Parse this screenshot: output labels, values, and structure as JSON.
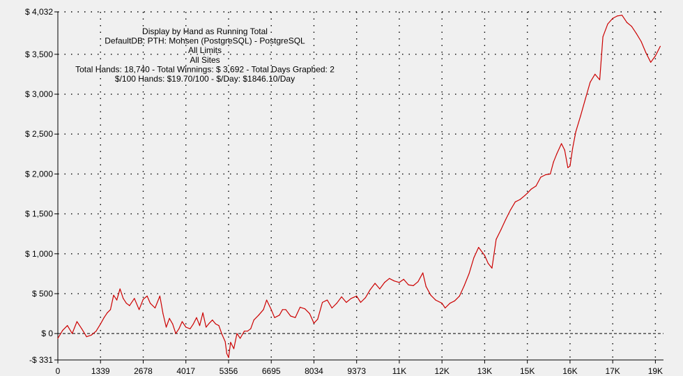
{
  "chart_data": {
    "type": "line",
    "title_lines": [
      "Display by Hand as Running Total",
      "DefaultDB: PTH: Mohsen (PostgreSQL) - PostgreSQL",
      "All Limits",
      "All Sites",
      "Total Hands: 18,740 - Total Winnings: $ 3,692 - Total Days Graphed: 2",
      "$/100 Hands: $19.70/100 - $/Day: $1846.10/Day"
    ],
    "xlim": [
      0,
      19000
    ],
    "ylim": [
      -331,
      4032
    ],
    "x_ticks": [
      {
        "value": 0,
        "label": "0"
      },
      {
        "value": 1339,
        "label": "1339"
      },
      {
        "value": 2678,
        "label": "2678"
      },
      {
        "value": 4017,
        "label": "4017"
      },
      {
        "value": 5356,
        "label": "5356"
      },
      {
        "value": 6695,
        "label": "6695"
      },
      {
        "value": 8034,
        "label": "8034"
      },
      {
        "value": 9373,
        "label": "9373"
      },
      {
        "value": 10712,
        "label": "11K"
      },
      {
        "value": 12051,
        "label": "12K"
      },
      {
        "value": 13390,
        "label": "13K"
      },
      {
        "value": 14729,
        "label": "15K"
      },
      {
        "value": 16068,
        "label": "16K"
      },
      {
        "value": 17407,
        "label": "17K"
      },
      {
        "value": 18746,
        "label": "19K"
      }
    ],
    "y_ticks": [
      {
        "value": 4032,
        "label": "$ 4,032"
      },
      {
        "value": 3500,
        "label": "$ 3,500"
      },
      {
        "value": 3000,
        "label": "$ 3,000"
      },
      {
        "value": 2500,
        "label": "$ 2,500"
      },
      {
        "value": 2000,
        "label": "$ 2,000"
      },
      {
        "value": 1500,
        "label": "$ 1,500"
      },
      {
        "value": 1000,
        "label": "$ 1,000"
      },
      {
        "value": 500,
        "label": "$ 500"
      },
      {
        "value": 0,
        "label": "$ 0"
      },
      {
        "value": -331,
        "label": "-$ 331"
      }
    ],
    "grid": true,
    "series": [
      {
        "color": "#cc0000",
        "points": [
          [
            0,
            -60
          ],
          [
            150,
            40
          ],
          [
            300,
            100
          ],
          [
            450,
            0
          ],
          [
            600,
            150
          ],
          [
            750,
            60
          ],
          [
            900,
            -40
          ],
          [
            1050,
            -20
          ],
          [
            1200,
            30
          ],
          [
            1339,
            120
          ],
          [
            1450,
            200
          ],
          [
            1550,
            260
          ],
          [
            1650,
            300
          ],
          [
            1750,
            480
          ],
          [
            1850,
            420
          ],
          [
            1950,
            560
          ],
          [
            2050,
            440
          ],
          [
            2150,
            380
          ],
          [
            2250,
            350
          ],
          [
            2400,
            440
          ],
          [
            2550,
            300
          ],
          [
            2678,
            430
          ],
          [
            2800,
            470
          ],
          [
            2900,
            380
          ],
          [
            3050,
            320
          ],
          [
            3200,
            470
          ],
          [
            3300,
            250
          ],
          [
            3400,
            80
          ],
          [
            3500,
            190
          ],
          [
            3600,
            120
          ],
          [
            3700,
            0
          ],
          [
            3800,
            60
          ],
          [
            3900,
            150
          ],
          [
            4017,
            80
          ],
          [
            4150,
            60
          ],
          [
            4250,
            120
          ],
          [
            4350,
            200
          ],
          [
            4450,
            100
          ],
          [
            4550,
            260
          ],
          [
            4650,
            80
          ],
          [
            4750,
            130
          ],
          [
            4850,
            170
          ],
          [
            4950,
            120
          ],
          [
            5050,
            100
          ],
          [
            5150,
            -10
          ],
          [
            5250,
            -100
          ],
          [
            5300,
            -250
          ],
          [
            5356,
            -300
          ],
          [
            5420,
            -110
          ],
          [
            5520,
            -190
          ],
          [
            5620,
            0
          ],
          [
            5720,
            -60
          ],
          [
            5850,
            30
          ],
          [
            5950,
            30
          ],
          [
            6050,
            60
          ],
          [
            6150,
            170
          ],
          [
            6300,
            230
          ],
          [
            6450,
            300
          ],
          [
            6550,
            420
          ],
          [
            6695,
            300
          ],
          [
            6800,
            200
          ],
          [
            6950,
            230
          ],
          [
            7050,
            300
          ],
          [
            7150,
            300
          ],
          [
            7300,
            220
          ],
          [
            7450,
            200
          ],
          [
            7600,
            330
          ],
          [
            7750,
            310
          ],
          [
            7900,
            250
          ],
          [
            8034,
            130
          ],
          [
            8150,
            180
          ],
          [
            8300,
            390
          ],
          [
            8450,
            420
          ],
          [
            8600,
            320
          ],
          [
            8750,
            380
          ],
          [
            8900,
            460
          ],
          [
            9050,
            390
          ],
          [
            9200,
            440
          ],
          [
            9373,
            470
          ],
          [
            9500,
            390
          ],
          [
            9650,
            450
          ],
          [
            9800,
            550
          ],
          [
            9950,
            630
          ],
          [
            10100,
            560
          ],
          [
            10250,
            640
          ],
          [
            10400,
            690
          ],
          [
            10550,
            660
          ],
          [
            10712,
            640
          ],
          [
            10850,
            680
          ],
          [
            11000,
            610
          ],
          [
            11150,
            600
          ],
          [
            11300,
            650
          ],
          [
            11450,
            760
          ],
          [
            11550,
            590
          ],
          [
            11700,
            480
          ],
          [
            11850,
            420
          ],
          [
            12051,
            380
          ],
          [
            12150,
            320
          ],
          [
            12300,
            380
          ],
          [
            12450,
            410
          ],
          [
            12600,
            470
          ],
          [
            12750,
            600
          ],
          [
            12900,
            750
          ],
          [
            13050,
            950
          ],
          [
            13200,
            1080
          ],
          [
            13390,
            980
          ],
          [
            13500,
            880
          ],
          [
            13620,
            820
          ],
          [
            13750,
            1180
          ],
          [
            13900,
            1300
          ],
          [
            14050,
            1430
          ],
          [
            14200,
            1550
          ],
          [
            14350,
            1650
          ],
          [
            14500,
            1680
          ],
          [
            14650,
            1730
          ],
          [
            14729,
            1760
          ],
          [
            14850,
            1810
          ],
          [
            15000,
            1850
          ],
          [
            15150,
            1960
          ],
          [
            15300,
            1990
          ],
          [
            15450,
            2000
          ],
          [
            15550,
            2150
          ],
          [
            15650,
            2250
          ],
          [
            15800,
            2380
          ],
          [
            15900,
            2300
          ],
          [
            16000,
            2080
          ],
          [
            16068,
            2100
          ],
          [
            16150,
            2320
          ],
          [
            16250,
            2530
          ],
          [
            16400,
            2730
          ],
          [
            16550,
            2940
          ],
          [
            16700,
            3150
          ],
          [
            16850,
            3250
          ],
          [
            17000,
            3180
          ],
          [
            17100,
            3720
          ],
          [
            17250,
            3880
          ],
          [
            17407,
            3950
          ],
          [
            17550,
            3980
          ],
          [
            17700,
            3990
          ],
          [
            17850,
            3900
          ],
          [
            18000,
            3850
          ],
          [
            18150,
            3760
          ],
          [
            18300,
            3660
          ],
          [
            18450,
            3520
          ],
          [
            18600,
            3400
          ],
          [
            18746,
            3480
          ],
          [
            18900,
            3600
          ]
        ]
      }
    ]
  }
}
